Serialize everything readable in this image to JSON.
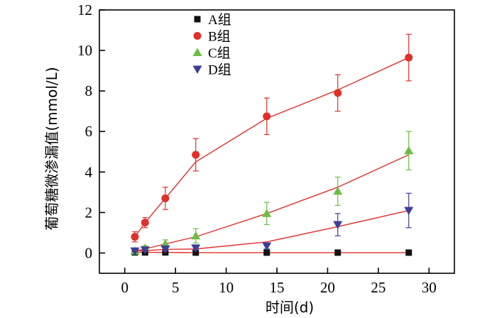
{
  "chart_data": {
    "type": "scatter",
    "title": "",
    "xlabel": "时间(d)",
    "ylabel": "葡萄糖微渗漏值(mmol/L)",
    "xlim": [
      -2.5,
      32.5
    ],
    "ylim": [
      -1,
      12
    ],
    "xticks": [
      0,
      5,
      10,
      15,
      20,
      25,
      30
    ],
    "yticks": [
      0,
      2,
      4,
      6,
      8,
      10,
      12
    ],
    "xtick_labels": [
      "0",
      "5",
      "10",
      "15",
      "20",
      "25",
      "30"
    ],
    "ytick_labels": [
      "0",
      "2",
      "4",
      "6",
      "8",
      "10",
      "12"
    ],
    "legend_position": "top-center",
    "series": [
      {
        "name": "A组",
        "marker": "square",
        "color": "#111111",
        "error_color": "#111111",
        "line_color": "#e0302c",
        "x": [
          1,
          2,
          4,
          7,
          14,
          21,
          28
        ],
        "y": [
          0.03,
          0.03,
          0.03,
          0.02,
          0.02,
          0.02,
          0.02
        ],
        "err": [
          0,
          0,
          0,
          0,
          0,
          0,
          0
        ],
        "fit_x": [
          1,
          2,
          4,
          7,
          14,
          21,
          28
        ],
        "fit_y": [
          0.03,
          0.03,
          0.03,
          0.02,
          0.02,
          0.02,
          0.02
        ]
      },
      {
        "name": "B组",
        "marker": "circle",
        "color": "#e0302c",
        "error_color": "#e0302c",
        "line_color": "#e0302c",
        "x": [
          1,
          2,
          4,
          7,
          14,
          21,
          28
        ],
        "y": [
          0.8,
          1.5,
          2.7,
          4.85,
          6.75,
          7.9,
          9.65
        ],
        "err": [
          0.25,
          0.25,
          0.55,
          0.8,
          0.9,
          0.9,
          1.15
        ],
        "fit_x": [
          1,
          2,
          4,
          7,
          14,
          21,
          28
        ],
        "fit_y": [
          0.8,
          1.5,
          2.7,
          4.5,
          6.65,
          8.05,
          9.65
        ]
      },
      {
        "name": "C组",
        "marker": "triangle-up",
        "color": "#6cbd45",
        "error_color": "#6cbd45",
        "line_color": "#e0302c",
        "x": [
          1,
          2,
          4,
          7,
          14,
          21,
          28
        ],
        "y": [
          0.1,
          0.25,
          0.45,
          0.85,
          1.95,
          3.05,
          5.05
        ],
        "err": [
          0.05,
          0.1,
          0.2,
          0.35,
          0.55,
          0.7,
          0.95
        ],
        "fit_x": [
          1,
          2,
          4,
          7,
          14,
          21,
          28
        ],
        "fit_y": [
          0.1,
          0.2,
          0.45,
          0.8,
          1.95,
          3.25,
          4.85
        ]
      },
      {
        "name": "D组",
        "marker": "triangle-down",
        "color": "#3d3f95",
        "error_color": "#3d3f95",
        "line_color": "#e0302c",
        "x": [
          1,
          2,
          4,
          7,
          14,
          21,
          28
        ],
        "y": [
          0.1,
          0.15,
          0.2,
          0.25,
          0.35,
          1.4,
          2.1
        ],
        "err": [
          0.05,
          0.05,
          0.1,
          0.1,
          0.15,
          0.55,
          0.85
        ],
        "fit_x": [
          1,
          2,
          4,
          7,
          14,
          21,
          28
        ],
        "fit_y": [
          0.1,
          0.12,
          0.18,
          0.2,
          0.55,
          1.3,
          2.1
        ]
      }
    ]
  }
}
